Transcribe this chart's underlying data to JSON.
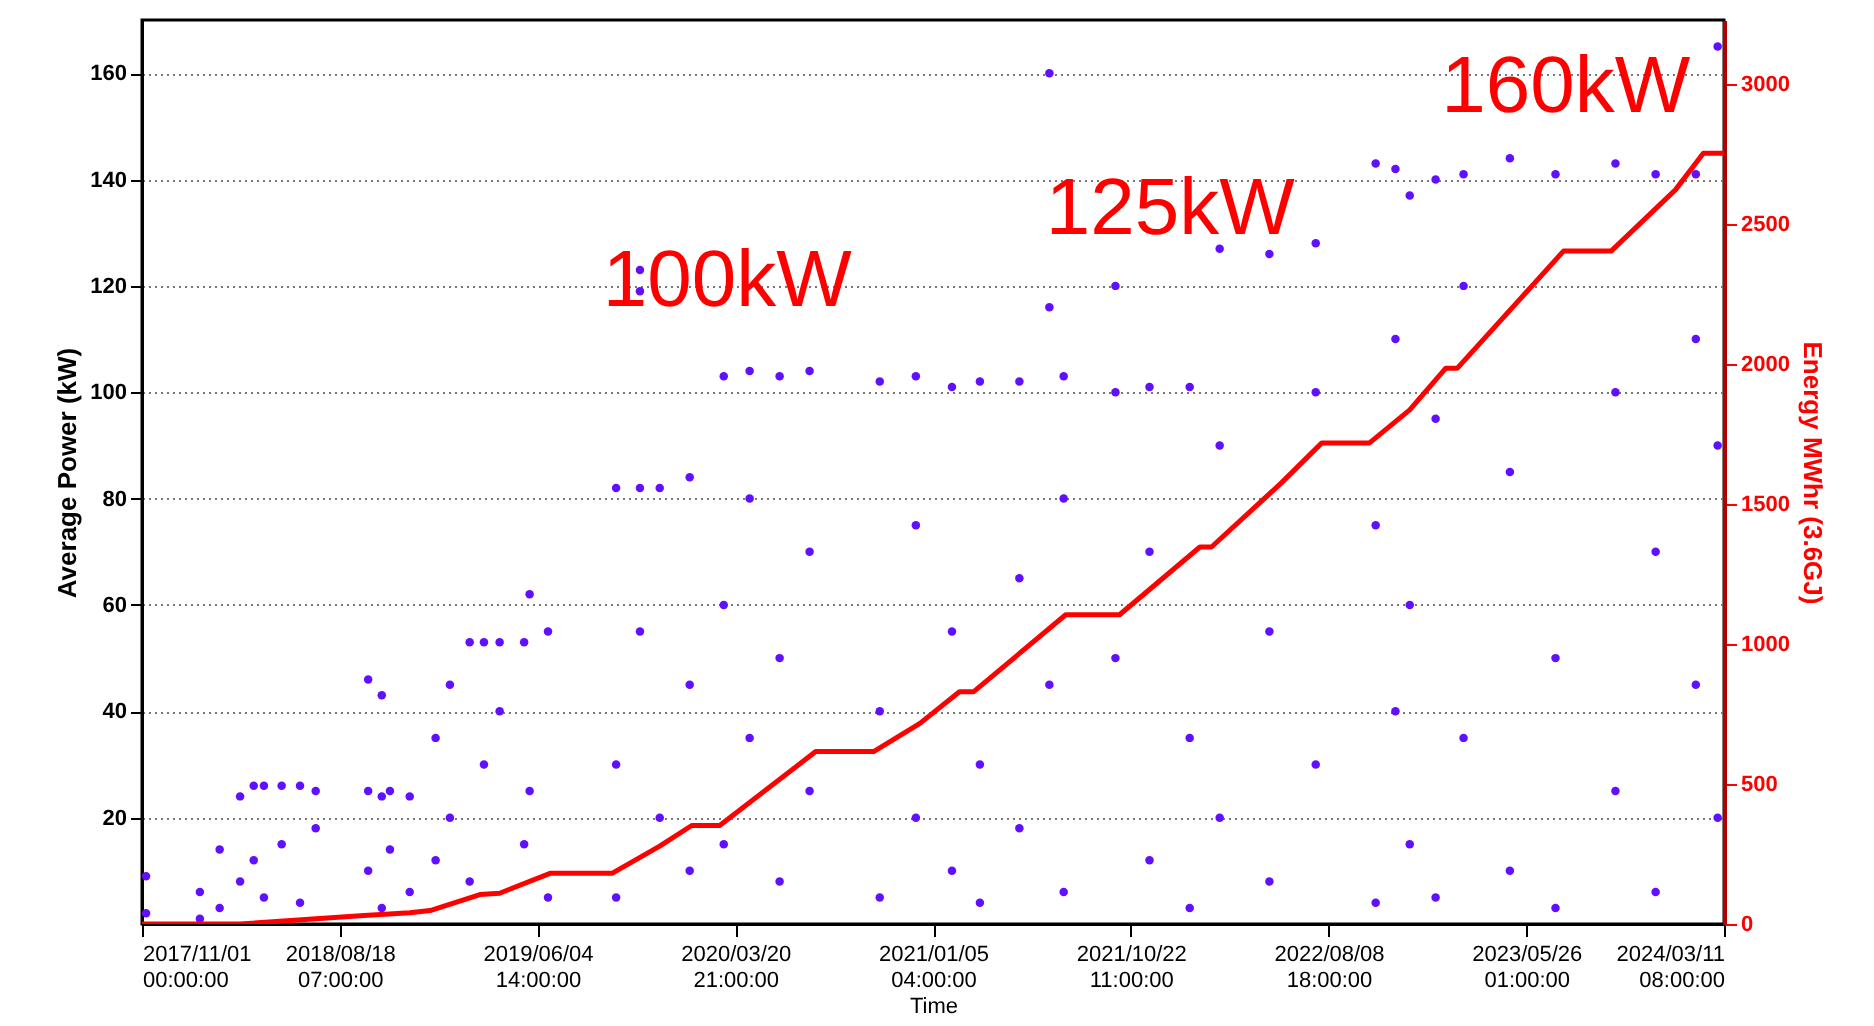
{
  "chart_data": {
    "type": "scatter",
    "xlabel": "Time",
    "ylabel": "Average Power (kW)",
    "y2label": "Energy MWhr (3.6GJ)",
    "xlim": [
      "2017-11-01T00:00",
      "2024-03-11T08:00"
    ],
    "xticks": [
      {
        "value": "2017-11-01T00:00",
        "label": "2017/11/01 00:00:00"
      },
      {
        "value": "2018-08-18T07:00",
        "label": "2018/08/18 07:00:00"
      },
      {
        "value": "2019-06-04T14:00",
        "label": "2019/06/04 14:00:00"
      },
      {
        "value": "2020-03-20T21:00",
        "label": "2020/03/20 21:00:00"
      },
      {
        "value": "2021-01-05T04:00",
        "label": "2021/01/05 04:00:00"
      },
      {
        "value": "2021-10-22T11:00",
        "label": "2021/10/22 11:00:00"
      },
      {
        "value": "2022-08-08T18:00",
        "label": "2022/08/08 18:00:00"
      },
      {
        "value": "2023-05-26T01:00",
        "label": "2023/05/26 01:00:00"
      },
      {
        "value": "2024-03-11T08:00",
        "label": "2024/03/11 08:00:00"
      }
    ],
    "ylim": [
      0,
      170
    ],
    "yticks": [
      20,
      40,
      60,
      80,
      100,
      120,
      140,
      160
    ],
    "y2lim": [
      0,
      3230
    ],
    "y2ticks": [
      0,
      500,
      1000,
      1500,
      2000,
      2500,
      3000
    ],
    "grid": "y",
    "annotations": [
      "100kW",
      "125kW",
      "160kW"
    ],
    "series": [
      {
        "color": "#6010ff",
        "marker": "circle",
        "x": [
          "2017-11-07",
          "2017-11-07",
          "2018-01-25",
          "2018-01-25",
          "2018-02-23",
          "2018-02-23",
          "2018-03-25",
          "2018-03-25",
          "2018-04-14",
          "2018-04-14",
          "2018-04-29",
          "2018-04-29",
          "2018-05-25",
          "2018-05-25",
          "2018-06-21",
          "2018-06-21",
          "2018-07-14",
          "2018-07-14",
          "2018-09-29",
          "2018-09-29",
          "2018-09-29",
          "2018-10-19",
          "2018-10-19",
          "2018-10-19",
          "2018-10-31",
          "2018-10-31",
          "2018-11-29",
          "2018-11-29",
          "2019-01-06",
          "2019-01-06",
          "2019-01-27",
          "2019-01-27",
          "2019-02-25",
          "2019-02-25",
          "2019-03-18",
          "2019-03-18",
          "2019-04-10",
          "2019-04-10",
          "2019-05-16",
          "2019-05-16",
          "2019-05-24",
          "2019-05-24",
          "2019-06-20",
          "2019-06-20",
          "2019-09-28",
          "2019-09-28",
          "2019-09-28",
          "2019-11-02",
          "2019-11-02",
          "2019-11-02",
          "2019-11-02",
          "2019-12-01",
          "2019-12-01",
          "2020-01-14",
          "2020-01-14",
          "2020-01-14",
          "2020-03-04",
          "2020-03-04",
          "2020-03-04",
          "2020-04-11",
          "2020-04-11",
          "2020-04-11",
          "2020-05-25",
          "2020-05-25",
          "2020-05-25",
          "2020-07-08",
          "2020-07-08",
          "2020-07-08",
          "2020-10-19",
          "2020-10-19",
          "2020-10-19",
          "2020-12-11",
          "2020-12-11",
          "2020-12-11",
          "2021-02-02",
          "2021-02-02",
          "2021-02-02",
          "2021-03-15",
          "2021-03-15",
          "2021-03-15",
          "2021-05-12",
          "2021-05-12",
          "2021-05-12",
          "2021-06-25",
          "2021-06-25",
          "2021-06-25",
          "2021-07-16",
          "2021-07-16",
          "2021-07-16",
          "2021-09-30",
          "2021-09-30",
          "2021-09-30",
          "2021-11-19",
          "2021-11-19",
          "2021-11-19",
          "2022-01-17",
          "2022-01-17",
          "2022-01-17",
          "2022-03-02",
          "2022-03-02",
          "2022-03-02",
          "2022-05-14",
          "2022-05-14",
          "2022-05-14",
          "2022-07-21",
          "2022-07-21",
          "2022-07-21",
          "2022-10-17",
          "2022-10-17",
          "2022-10-17",
          "2022-11-15",
          "2022-11-15",
          "2022-11-15",
          "2022-12-06",
          "2022-12-06",
          "2022-12-06",
          "2023-01-13",
          "2023-01-13",
          "2023-01-13",
          "2023-02-23",
          "2023-02-23",
          "2023-02-23",
          "2023-05-02",
          "2023-05-02",
          "2023-05-02",
          "2023-07-08",
          "2023-07-08",
          "2023-07-08",
          "2023-10-04",
          "2023-10-04",
          "2023-10-04",
          "2023-12-02",
          "2023-12-02",
          "2023-12-02",
          "2024-01-30",
          "2024-01-30",
          "2024-01-30",
          "2024-03-02",
          "2024-03-02",
          "2024-03-02"
        ],
        "values": [
          9,
          2,
          6,
          1,
          14,
          3,
          24,
          8,
          26,
          12,
          26,
          5,
          26,
          15,
          26,
          4,
          25,
          18,
          46,
          25,
          10,
          43,
          24,
          3,
          25,
          14,
          24,
          6,
          35,
          12,
          45,
          20,
          53,
          8,
          53,
          30,
          53,
          40,
          53,
          15,
          62,
          25,
          55,
          5,
          82,
          30,
          5,
          123,
          119,
          82,
          55,
          82,
          20,
          84,
          45,
          10,
          103,
          60,
          15,
          104,
          80,
          35,
          103,
          50,
          8,
          104,
          70,
          25,
          102,
          40,
          5,
          103,
          75,
          20,
          101,
          55,
          10,
          102,
          30,
          4,
          102,
          65,
          18,
          160,
          116,
          45,
          103,
          80,
          6,
          120,
          100,
          50,
          101,
          70,
          12,
          101,
          35,
          3,
          127,
          90,
          20,
          126,
          55,
          8,
          128,
          100,
          30,
          143,
          75,
          4,
          142,
          110,
          40,
          137,
          60,
          15,
          140,
          95,
          5,
          141,
          120,
          35,
          144,
          85,
          10,
          141,
          50,
          3,
          143,
          100,
          25,
          141,
          70,
          6,
          141,
          110,
          45,
          165,
          90,
          20
        ]
      },
      {
        "type": "line",
        "color": "#ff0000",
        "axis": "y2",
        "x": [
          "2017-11-01",
          "2018-03-25",
          "2018-07-20",
          "2018-09-23",
          "2018-11-29",
          "2018-12-29",
          "2019-03-12",
          "2019-04-10",
          "2019-06-23",
          "2019-09-22",
          "2019-12-01",
          "2020-01-17",
          "2020-02-27",
          "2020-07-17",
          "2020-10-10",
          "2020-12-17",
          "2021-02-13",
          "2021-03-06",
          "2021-07-19",
          "2021-10-06",
          "2022-02-01",
          "2022-02-18",
          "2022-06-01",
          "2022-07-30",
          "2022-10-08",
          "2022-12-06",
          "2023-01-28",
          "2023-02-14",
          "2023-07-20",
          "2023-09-28",
          "2023-12-31",
          "2024-02-10",
          "2024-03-11"
        ],
        "values": [
          0,
          0,
          20,
          30,
          40,
          48,
          105,
          110,
          181,
          181,
          278,
          352,
          352,
          616,
          616,
          717,
          830,
          830,
          1105,
          1105,
          1347,
          1347,
          1577,
          1719,
          1719,
          1837,
          1986,
          1986,
          2405,
          2405,
          2623,
          2754,
          2754
        ]
      }
    ]
  }
}
